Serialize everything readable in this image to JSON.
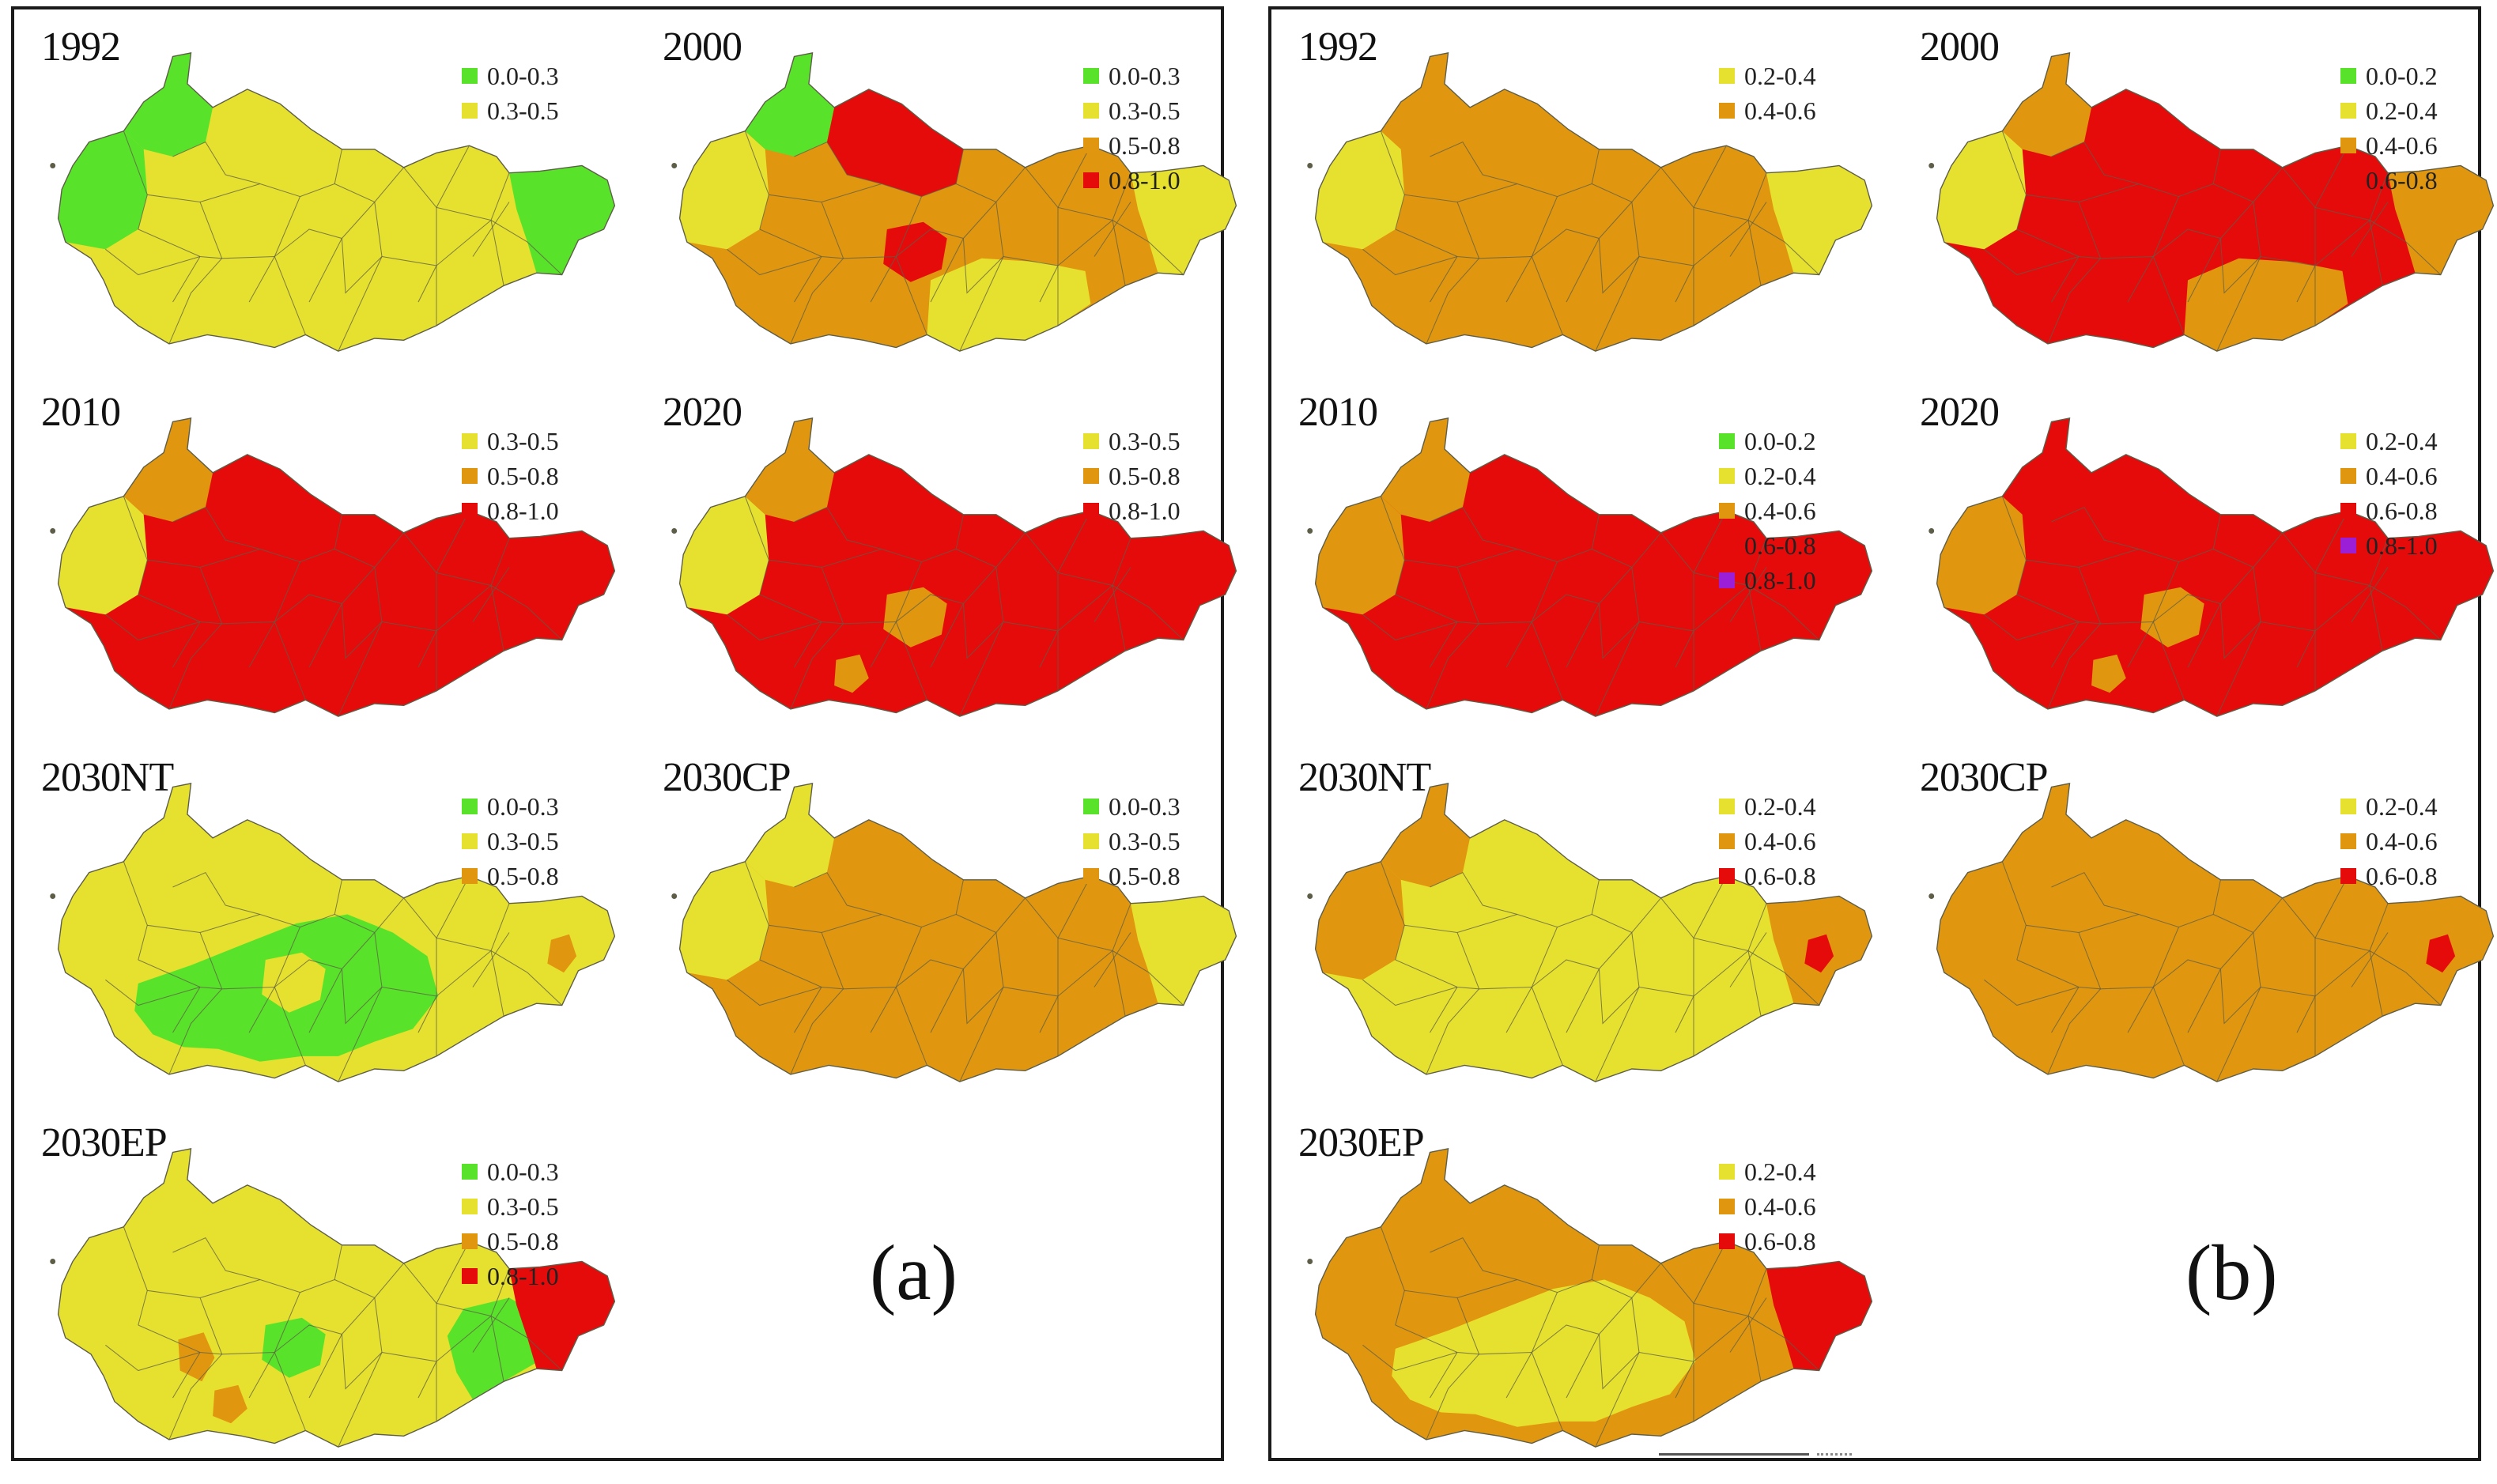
{
  "colors": {
    "green": "#58e22a",
    "yellow": "#e6e12e",
    "orange": "#e0960f",
    "red": "#e50b0b",
    "purple": "#9b1fd6",
    "boundary": "#5d5d48"
  },
  "panels": [
    {
      "id": "a",
      "label": "(a)",
      "maps": [
        {
          "title": "1992",
          "base": "yellow",
          "regions": [
            [
              "green",
              "nw"
            ],
            [
              "green",
              "west"
            ],
            [
              "green",
              "east"
            ]
          ],
          "legend": [
            {
              "label": "0.0-0.3",
              "color": "green"
            },
            {
              "label": "0.3-0.5",
              "color": "yellow"
            }
          ]
        },
        {
          "title": "2000",
          "base": "orange",
          "regions": [
            [
              "red",
              "north"
            ],
            [
              "red",
              "center-small"
            ],
            [
              "yellow",
              "west"
            ],
            [
              "yellow",
              "south"
            ],
            [
              "yellow",
              "east"
            ],
            [
              "green",
              "nw"
            ]
          ],
          "legend": [
            {
              "label": "0.0-0.3",
              "color": "green"
            },
            {
              "label": "0.3-0.5",
              "color": "yellow"
            },
            {
              "label": "0.5-0.8",
              "color": "orange"
            },
            {
              "label": "0.8-1.0",
              "color": "red"
            }
          ]
        },
        {
          "title": "2010",
          "base": "red",
          "regions": [
            [
              "orange",
              "nw"
            ],
            [
              "yellow",
              "west"
            ]
          ],
          "legend": [
            {
              "label": "0.3-0.5",
              "color": "yellow"
            },
            {
              "label": "0.5-0.8",
              "color": "orange"
            },
            {
              "label": "0.8-1.0",
              "color": "red"
            }
          ]
        },
        {
          "title": "2020",
          "base": "red",
          "regions": [
            [
              "orange",
              "nw"
            ],
            [
              "yellow",
              "west"
            ],
            [
              "orange",
              "center-small"
            ],
            [
              "orange",
              "south-spot"
            ]
          ],
          "legend": [
            {
              "label": "0.3-0.5",
              "color": "yellow"
            },
            {
              "label": "0.5-0.8",
              "color": "orange"
            },
            {
              "label": "0.8-1.0",
              "color": "red"
            }
          ]
        },
        {
          "title": "2030NT",
          "base": "yellow",
          "regions": [
            [
              "green",
              "center-big"
            ],
            [
              "yellow",
              "center-small"
            ],
            [
              "orange",
              "east-spot"
            ]
          ],
          "legend": [
            {
              "label": "0.0-0.3",
              "color": "green"
            },
            {
              "label": "0.3-0.5",
              "color": "yellow"
            },
            {
              "label": "0.5-0.8",
              "color": "orange"
            }
          ]
        },
        {
          "title": "2030CP",
          "base": "orange",
          "regions": [
            [
              "yellow",
              "west"
            ],
            [
              "yellow",
              "nw"
            ],
            [
              "yellow",
              "east"
            ]
          ],
          "legend": [
            {
              "label": "0.0-0.3",
              "color": "green"
            },
            {
              "label": "0.3-0.5",
              "color": "yellow"
            },
            {
              "label": "0.5-0.8",
              "color": "orange"
            }
          ]
        },
        {
          "title": "2030EP",
          "base": "yellow",
          "regions": [
            [
              "green",
              "east-mid"
            ],
            [
              "green",
              "center-small"
            ],
            [
              "orange",
              "south-spot"
            ],
            [
              "orange",
              "center-small2"
            ],
            [
              "red",
              "east"
            ]
          ],
          "legend": [
            {
              "label": "0.0-0.3",
              "color": "green"
            },
            {
              "label": "0.3-0.5",
              "color": "yellow"
            },
            {
              "label": "0.5-0.8",
              "color": "orange"
            },
            {
              "label": "0.8-1.0",
              "color": "red"
            }
          ]
        }
      ]
    },
    {
      "id": "b",
      "label": "(b)",
      "maps": [
        {
          "title": "1992",
          "base": "orange",
          "regions": [
            [
              "yellow",
              "west"
            ],
            [
              "yellow",
              "east"
            ]
          ],
          "legend": [
            {
              "label": "0.2-0.4",
              "color": "yellow"
            },
            {
              "label": "0.4-0.6",
              "color": "orange"
            }
          ]
        },
        {
          "title": "2000",
          "base": "red",
          "regions": [
            [
              "orange",
              "nw"
            ],
            [
              "yellow",
              "west"
            ],
            [
              "orange",
              "east"
            ],
            [
              "orange",
              "south"
            ]
          ],
          "legend": [
            {
              "label": "0.0-0.2",
              "color": "green"
            },
            {
              "label": "0.2-0.4",
              "color": "yellow"
            },
            {
              "label": "0.4-0.6",
              "color": "orange"
            },
            {
              "label": "0.6-0.8",
              "color": "red"
            }
          ]
        },
        {
          "title": "2010",
          "base": "red",
          "regions": [
            [
              "orange",
              "nw"
            ],
            [
              "orange",
              "west"
            ]
          ],
          "legend": [
            {
              "label": "0.0-0.2",
              "color": "green"
            },
            {
              "label": "0.2-0.4",
              "color": "yellow"
            },
            {
              "label": "0.4-0.6",
              "color": "orange"
            },
            {
              "label": "0.6-0.8",
              "color": "red"
            },
            {
              "label": "0.8-1.0",
              "color": "purple"
            }
          ]
        },
        {
          "title": "2020",
          "base": "red",
          "regions": [
            [
              "orange",
              "west"
            ],
            [
              "orange",
              "center-small"
            ],
            [
              "orange",
              "south-spot"
            ]
          ],
          "legend": [
            {
              "label": "0.2-0.4",
              "color": "yellow"
            },
            {
              "label": "0.4-0.6",
              "color": "orange"
            },
            {
              "label": "0.6-0.8",
              "color": "red"
            },
            {
              "label": "0.8-1.0",
              "color": "purple"
            }
          ]
        },
        {
          "title": "2030NT",
          "base": "yellow",
          "regions": [
            [
              "orange",
              "nw"
            ],
            [
              "orange",
              "west"
            ],
            [
              "orange",
              "east"
            ],
            [
              "red",
              "east-spot"
            ]
          ],
          "legend": [
            {
              "label": "0.2-0.4",
              "color": "yellow"
            },
            {
              "label": "0.4-0.6",
              "color": "orange"
            },
            {
              "label": "0.6-0.8",
              "color": "red"
            }
          ]
        },
        {
          "title": "2030CP",
          "base": "orange",
          "regions": [
            [
              "red",
              "east-spot"
            ]
          ],
          "legend": [
            {
              "label": "0.2-0.4",
              "color": "yellow"
            },
            {
              "label": "0.4-0.6",
              "color": "orange"
            },
            {
              "label": "0.6-0.8",
              "color": "red"
            }
          ]
        },
        {
          "title": "2030EP",
          "base": "orange",
          "regions": [
            [
              "yellow",
              "center-big"
            ],
            [
              "red",
              "east"
            ]
          ],
          "legend": [
            {
              "label": "0.2-0.4",
              "color": "yellow"
            },
            {
              "label": "0.4-0.6",
              "color": "orange"
            },
            {
              "label": "0.6-0.8",
              "color": "red"
            }
          ]
        }
      ]
    }
  ]
}
